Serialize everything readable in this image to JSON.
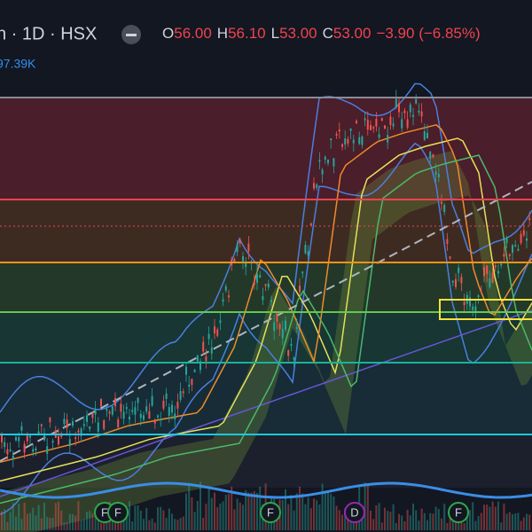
{
  "header": {
    "symbol": "n · 1D · HSX",
    "ohlc": [
      {
        "key": "O",
        "value": "56.00"
      },
      {
        "key": "H",
        "value": "56.10"
      },
      {
        "key": "L",
        "value": "53.00"
      },
      {
        "key": "C",
        "value": "53.00"
      }
    ],
    "change": "−3.90 (−6.85%)"
  },
  "volume": {
    "value": "97.39K"
  },
  "events": [
    "F",
    "F",
    "F",
    "D",
    "F"
  ]
}
